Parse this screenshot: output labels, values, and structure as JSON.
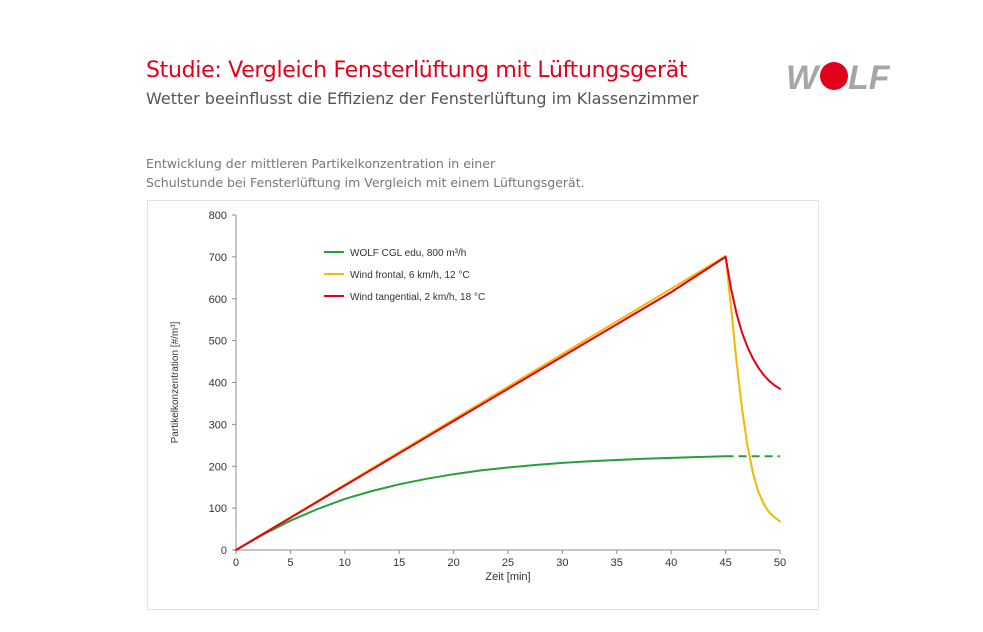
{
  "header": {
    "title": "Studie: Vergleich Fensterlüftung mit Lüftungsgerät",
    "subtitle": "Wetter beeinflusst die Effizienz der Fensterlüftung im Klassenzimmer",
    "description_lines": [
      "Entwicklung der mittleren Partikelkonzentration in einer",
      "Schulstunde bei Fensterlüftung im Vergleich mit einem Lüftungsgerät."
    ]
  },
  "logo": {
    "text": "W LF",
    "icon": "wolf-logo-icon",
    "colors": {
      "letters": "#a6a6a6",
      "dot": "#e2001a"
    }
  },
  "chart_data": {
    "type": "line",
    "xlabel": "Zeit [min]",
    "ylabel": "Partikelkonzentration [#/m³]",
    "xlim": [
      0,
      50
    ],
    "ylim": [
      0,
      800
    ],
    "xticks": [
      0,
      5,
      10,
      15,
      20,
      25,
      30,
      35,
      40,
      45,
      50
    ],
    "yticks": [
      0,
      100,
      200,
      300,
      400,
      500,
      600,
      700,
      800
    ],
    "grid": false,
    "legend_position": "top-left",
    "series": [
      {
        "name": "WOLF CGL edu, 800 m³/h",
        "color": "#22a33a",
        "x": [
          0,
          2.5,
          5,
          7.5,
          10,
          12.5,
          15,
          17.5,
          20,
          22.5,
          25,
          27.5,
          30,
          32.5,
          35,
          37.5,
          40,
          42.5,
          45
        ],
        "y": [
          0,
          37,
          70,
          98,
          122,
          141,
          157,
          170,
          181,
          190,
          197,
          203,
          208,
          212,
          215,
          218,
          220,
          222,
          224
        ],
        "extension": {
          "x": [
            45,
            50
          ],
          "y": [
            224,
            224
          ],
          "style": "dashed"
        }
      },
      {
        "name": "Wind frontal, 6 km/h, 12 °C",
        "color": "#f5b800",
        "x": [
          0,
          5,
          10,
          15,
          20,
          25,
          30,
          35,
          40,
          45,
          45.5,
          46,
          46.5,
          47,
          47.5,
          48,
          48.5,
          49,
          49.5,
          50
        ],
        "y": [
          0,
          78,
          156,
          234,
          312,
          390,
          468,
          546,
          624,
          702,
          580,
          450,
          340,
          250,
          185,
          140,
          110,
          90,
          78,
          68
        ]
      },
      {
        "name": "Wind tangential, 2 km/h, 18 °C",
        "color": "#e2001a",
        "x": [
          0,
          5,
          10,
          15,
          20,
          25,
          30,
          35,
          40,
          45,
          45.5,
          46,
          46.5,
          47,
          47.5,
          48,
          48.5,
          49,
          49.5,
          50
        ],
        "y": [
          0,
          77,
          154,
          231,
          308,
          385,
          462,
          539,
          616,
          700,
          625,
          565,
          520,
          485,
          458,
          436,
          418,
          404,
          393,
          385
        ]
      }
    ]
  }
}
